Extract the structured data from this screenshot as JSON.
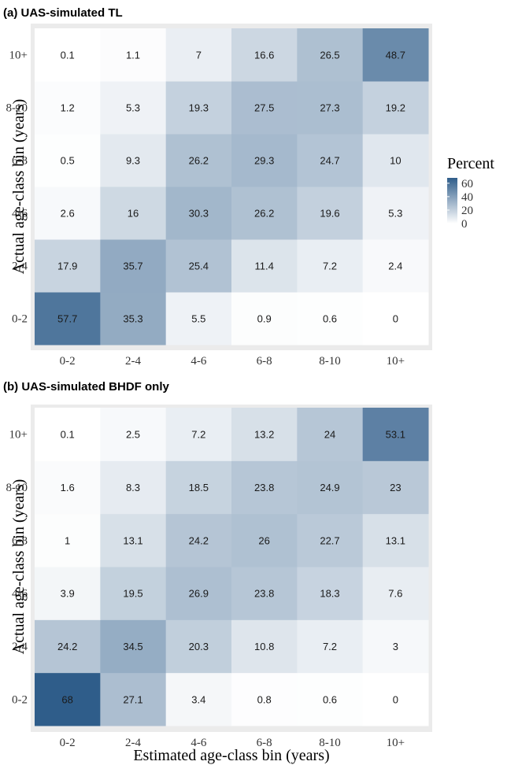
{
  "chart_data": [
    {
      "type": "heatmap",
      "title": "(a) UAS-simulated TL",
      "xlabel": "",
      "ylabel": "Actual age-class bin (years)",
      "x_categories": [
        "0-2",
        "2-4",
        "4-6",
        "6-8",
        "8-10",
        "10+"
      ],
      "y_categories": [
        "0-2",
        "2-4",
        "4-6",
        "6-8",
        "8-10",
        "10+"
      ],
      "values": [
        [
          57.7,
          35.3,
          5.5,
          0.9,
          0.6,
          0
        ],
        [
          17.9,
          35.7,
          25.4,
          11.4,
          7.2,
          2.4
        ],
        [
          2.6,
          16,
          30.3,
          26.2,
          19.6,
          5.3
        ],
        [
          0.5,
          9.3,
          26.2,
          29.3,
          24.7,
          10
        ],
        [
          1.2,
          5.3,
          19.3,
          27.5,
          27.3,
          19.2
        ],
        [
          0.1,
          1.1,
          7,
          16.6,
          26.5,
          48.7
        ]
      ]
    },
    {
      "type": "heatmap",
      "title": "(b) UAS-simulated BHDF only",
      "xlabel": "Estimated age-class bin (years)",
      "ylabel": "Actual age-class bin (years)",
      "x_categories": [
        "0-2",
        "2-4",
        "4-6",
        "6-8",
        "8-10",
        "10+"
      ],
      "y_categories": [
        "0-2",
        "2-4",
        "4-6",
        "6-8",
        "8-10",
        "10+"
      ],
      "values": [
        [
          68,
          27.1,
          3.4,
          0.8,
          0.6,
          0
        ],
        [
          24.2,
          34.5,
          20.3,
          10.8,
          7.2,
          3
        ],
        [
          3.9,
          19.5,
          26.9,
          23.8,
          18.3,
          7.6
        ],
        [
          1,
          13.1,
          24.2,
          26,
          22.7,
          13.1
        ],
        [
          1.6,
          8.3,
          18.5,
          23.8,
          24.9,
          23
        ],
        [
          0.1,
          2.5,
          7.2,
          13.2,
          24,
          53.1
        ]
      ]
    }
  ],
  "legend": {
    "title": "Percent",
    "ticks": [
      0,
      20,
      40,
      60
    ],
    "range": [
      0,
      68
    ],
    "low_color": "#ffffff",
    "high_color": "#2f5d8a"
  },
  "colors": {
    "panel_background": "#ebebeb"
  }
}
